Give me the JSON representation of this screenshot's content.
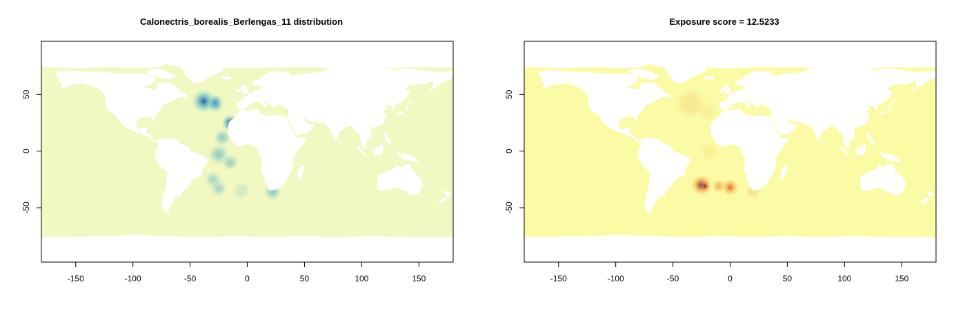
{
  "panels": [
    {
      "title": "Calonectris_borealis_Berlengas_11 distribution",
      "palette": {
        "ocean": "#f1f8c1",
        "low": "#c5e7c2",
        "mid": "#4fb0cb",
        "high": "#1d5fae",
        "peak": "#0b2a6e"
      }
    },
    {
      "title": "Exposure score = 12.5233",
      "palette": {
        "ocean": "#fbfba6",
        "low": "#f2d96b",
        "mid": "#ee8a2c",
        "high": "#d9411e",
        "peak": "#6b1f6f"
      }
    }
  ],
  "axes": {
    "x": {
      "range": [
        -180,
        180
      ],
      "ticks": [
        -150,
        -100,
        -50,
        0,
        50,
        100,
        150
      ]
    },
    "y": {
      "range": [
        -98,
        97
      ],
      "ticks": [
        50,
        0,
        -50
      ],
      "tick_labels": [
        "50",
        "0",
        "-50"
      ]
    }
  },
  "land_color": "#ffffff"
}
